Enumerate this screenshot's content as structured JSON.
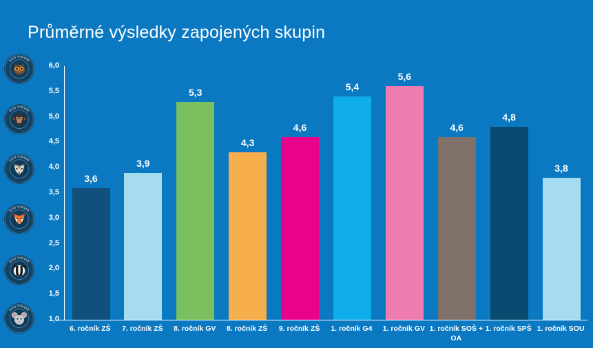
{
  "page": {
    "background_color": "#0b79c2",
    "text_color": "#ffffff"
  },
  "title": "Průměrné výsledky zapojených skupin",
  "badges": [
    {
      "name": "specialista",
      "animal": "owl",
      "top_text": "SCIO ČTENÁŘ",
      "label": "SPECIALISTA"
    },
    {
      "name": "profik",
      "animal": "monkey",
      "top_text": "SCIO ČTENÁŘ",
      "label": "PROFÍK"
    },
    {
      "name": "objevitel",
      "animal": "wolf",
      "top_text": "SCIO ČTENÁŘ",
      "label": "OBJEVITEL"
    },
    {
      "name": "pruzkumnik",
      "animal": "fox",
      "top_text": "SCIO ČTENÁŘ",
      "label": "PRŮZKUMNÍK"
    },
    {
      "name": "zacatecnik",
      "animal": "badger",
      "top_text": "SCIO ČTENÁŘ",
      "label": "ZAČÁTEČNÍK"
    },
    {
      "name": "nectenar",
      "animal": "mouse",
      "top_text": "SCIO ČTENÁŘ",
      "label": "NEČTENÁŘ"
    }
  ],
  "chart_data": {
    "type": "bar",
    "title": "Průměrné výsledky zapojených skupin",
    "categories": [
      "6. ročník ZŠ",
      "7. ročník ZŠ",
      "8. ročník GV",
      "8. ročník ZŠ",
      "9. ročník ZŠ",
      "1. ročník G4",
      "1. ročník GV",
      "1. ročník SOŠ + OA",
      "1. ročník SPŠ",
      "1. ročník SOU"
    ],
    "values": [
      3.6,
      3.9,
      5.3,
      4.3,
      4.6,
      5.4,
      5.6,
      4.6,
      4.8,
      3.8
    ],
    "value_labels": [
      "3,6",
      "3,9",
      "5,3",
      "4,3",
      "4,6",
      "5,4",
      "5,6",
      "4,6",
      "4,8",
      "3,8"
    ],
    "bar_colors": [
      "#114f7c",
      "#a6dcf0",
      "#7ac05f",
      "#f7ae4d",
      "#e9038a",
      "#0fade9",
      "#ef7cb0",
      "#80706a",
      "#0b4a70",
      "#a6dcf0"
    ],
    "xlabel": "",
    "ylabel": "",
    "ylim": [
      1.0,
      6.0
    ],
    "ytick_step": 0.5,
    "yticks": [
      "6,0",
      "5,5",
      "5,0",
      "4,5",
      "4,0",
      "3,5",
      "3,0",
      "2,5",
      "2,0",
      "1,5",
      "1,0"
    ],
    "grid": false,
    "legend": null,
    "decimal_separator": ","
  }
}
